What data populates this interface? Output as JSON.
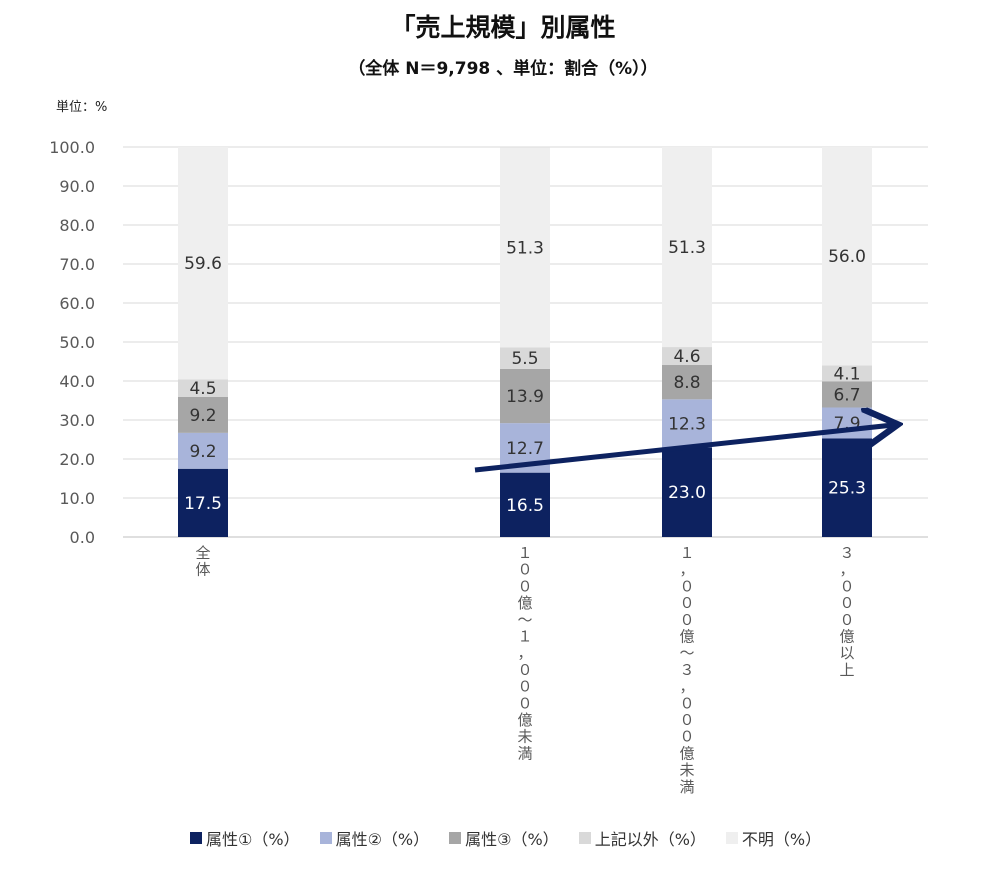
{
  "chart_data": {
    "type": "bar",
    "stacked": true,
    "title": "「売上規模」別属性",
    "subtitle": "（全体 N＝9,798 、単位：割合（%））",
    "unit_label": "単位：%",
    "categories": [
      "全体",
      "",
      "100億〜1,000億未満",
      "1,000億〜3,000億未満",
      "3,000億以上"
    ],
    "category_labels": [
      "全体",
      "",
      "１００億〜１，０００億未満",
      "１，０００億〜３，０００億未満",
      "３，０００億以上"
    ],
    "ylim": [
      0,
      100
    ],
    "yticks": [
      "0.0",
      "10.0",
      "20.0",
      "30.0",
      "40.0",
      "50.0",
      "60.0",
      "70.0",
      "80.0",
      "90.0",
      "100.0"
    ],
    "grid": true,
    "legend_position": "bottom",
    "series": [
      {
        "name": "属性①（%）",
        "color": "#0d2260",
        "label_color": "#ffffff",
        "values": [
          17.5,
          null,
          16.5,
          23.0,
          25.3
        ]
      },
      {
        "name": "属性②（%）",
        "color": "#a8b4da",
        "label_color": "#333333",
        "values": [
          9.2,
          null,
          12.7,
          12.3,
          7.9
        ]
      },
      {
        "name": "属性③（%）",
        "color": "#a6a6a6",
        "label_color": "#333333",
        "values": [
          9.2,
          null,
          13.9,
          8.8,
          6.7
        ]
      },
      {
        "name": "上記以外（%）",
        "color": "#d9d9d9",
        "label_color": "#333333",
        "values": [
          4.5,
          null,
          5.5,
          4.6,
          4.1
        ]
      },
      {
        "name": "不明（%）",
        "color": "#efefef",
        "label_color": "#333333",
        "values": [
          59.6,
          null,
          51.3,
          51.3,
          56.0
        ]
      }
    ],
    "annotations": [
      {
        "type": "trend-arrow",
        "color": "#0d2260"
      }
    ]
  }
}
